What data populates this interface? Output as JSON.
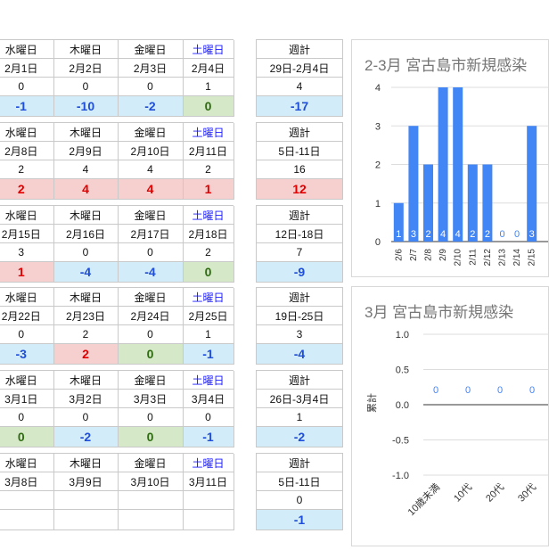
{
  "weeks": [
    {
      "headers": [
        "水曜日",
        "木曜日",
        "金曜日",
        "土曜日"
      ],
      "dates": [
        "2月1日",
        "2月2日",
        "2月3日",
        "2月4日"
      ],
      "counts": [
        "0",
        "0",
        "0",
        "1"
      ],
      "diffs": [
        "-1",
        "-10",
        "-2",
        "0"
      ],
      "diff_styles": [
        "blue",
        "blue",
        "blue",
        "green"
      ],
      "weekly": {
        "header": "週計",
        "range": "29日-2月4日",
        "count": "4",
        "diff": "-17",
        "diff_style": "blue"
      }
    },
    {
      "headers": [
        "水曜日",
        "木曜日",
        "金曜日",
        "土曜日"
      ],
      "dates": [
        "2月8日",
        "2月9日",
        "2月10日",
        "2月11日"
      ],
      "counts": [
        "2",
        "4",
        "4",
        "2"
      ],
      "diffs": [
        "2",
        "4",
        "4",
        "1"
      ],
      "diff_styles": [
        "red",
        "red",
        "red",
        "red"
      ],
      "weekly": {
        "header": "週計",
        "range": "5日-11日",
        "count": "16",
        "diff": "12",
        "diff_style": "red"
      }
    },
    {
      "headers": [
        "水曜日",
        "木曜日",
        "金曜日",
        "土曜日"
      ],
      "dates": [
        "2月15日",
        "2月16日",
        "2月17日",
        "2月18日"
      ],
      "counts": [
        "3",
        "0",
        "0",
        "2"
      ],
      "diffs": [
        "1",
        "-4",
        "-4",
        "0"
      ],
      "diff_styles": [
        "red",
        "blue",
        "blue",
        "green"
      ],
      "weekly": {
        "header": "週計",
        "range": "12日-18日",
        "count": "7",
        "diff": "-9",
        "diff_style": "blue"
      }
    },
    {
      "headers": [
        "水曜日",
        "木曜日",
        "金曜日",
        "土曜日"
      ],
      "dates": [
        "2月22日",
        "2月23日",
        "2月24日",
        "2月25日"
      ],
      "counts": [
        "0",
        "2",
        "0",
        "1"
      ],
      "diffs": [
        "-3",
        "2",
        "0",
        "-1"
      ],
      "diff_styles": [
        "blue",
        "red",
        "green",
        "blue"
      ],
      "weekly": {
        "header": "週計",
        "range": "19日-25日",
        "count": "3",
        "diff": "-4",
        "diff_style": "blue"
      }
    },
    {
      "headers": [
        "水曜日",
        "木曜日",
        "金曜日",
        "土曜日"
      ],
      "dates": [
        "3月1日",
        "3月2日",
        "3月3日",
        "3月4日"
      ],
      "counts": [
        "0",
        "0",
        "0",
        "0"
      ],
      "diffs": [
        "0",
        "-2",
        "0",
        "-1"
      ],
      "diff_styles": [
        "green",
        "blue",
        "green",
        "blue"
      ],
      "weekly": {
        "header": "週計",
        "range": "26日-3月4日",
        "count": "1",
        "diff": "-2",
        "diff_style": "blue"
      }
    },
    {
      "headers": [
        "水曜日",
        "木曜日",
        "金曜日",
        "土曜日"
      ],
      "dates": [
        "3月8日",
        "3月9日",
        "3月10日",
        "3月11日"
      ],
      "counts": [
        "",
        "",
        "",
        ""
      ],
      "diffs": [
        "",
        "",
        "",
        ""
      ],
      "diff_styles": [
        "none",
        "none",
        "none",
        "none"
      ],
      "weekly": {
        "header": "週計",
        "range": "5日-11日",
        "count": "0",
        "diff": "-1",
        "diff_style": "blue"
      }
    }
  ],
  "chart_data": [
    {
      "type": "bar",
      "title": "2-3月 宮古島市新規感染",
      "categories": [
        "2/6",
        "2/7",
        "2/8",
        "2/9",
        "2/10",
        "2/11",
        "2/12",
        "2/13",
        "2/14",
        "2/15"
      ],
      "values": [
        1,
        3,
        2,
        4,
        4,
        2,
        2,
        0,
        0,
        3
      ],
      "data_labels": [
        "1",
        "3",
        "2",
        "4",
        "4",
        "2",
        "2",
        "0",
        "0",
        "3"
      ],
      "ylim": [
        0,
        4
      ],
      "yticks": [
        "0",
        "1",
        "2",
        "3",
        "4"
      ],
      "color": "#4285f4",
      "grid": true
    },
    {
      "type": "bar",
      "title": "3月 宮古島市新規感染",
      "categories": [
        "10歳未満",
        "10代",
        "20代",
        "30代"
      ],
      "values": [
        0,
        0,
        0,
        0
      ],
      "data_labels": [
        "0",
        "0",
        "0",
        "0"
      ],
      "ylabel": "累計",
      "ylim": [
        -1.0,
        1.0
      ],
      "yticks": [
        "-1.0",
        "-0.5",
        "0.0",
        "0.5",
        "1.0"
      ],
      "color": "#4285f4",
      "grid": true
    }
  ]
}
